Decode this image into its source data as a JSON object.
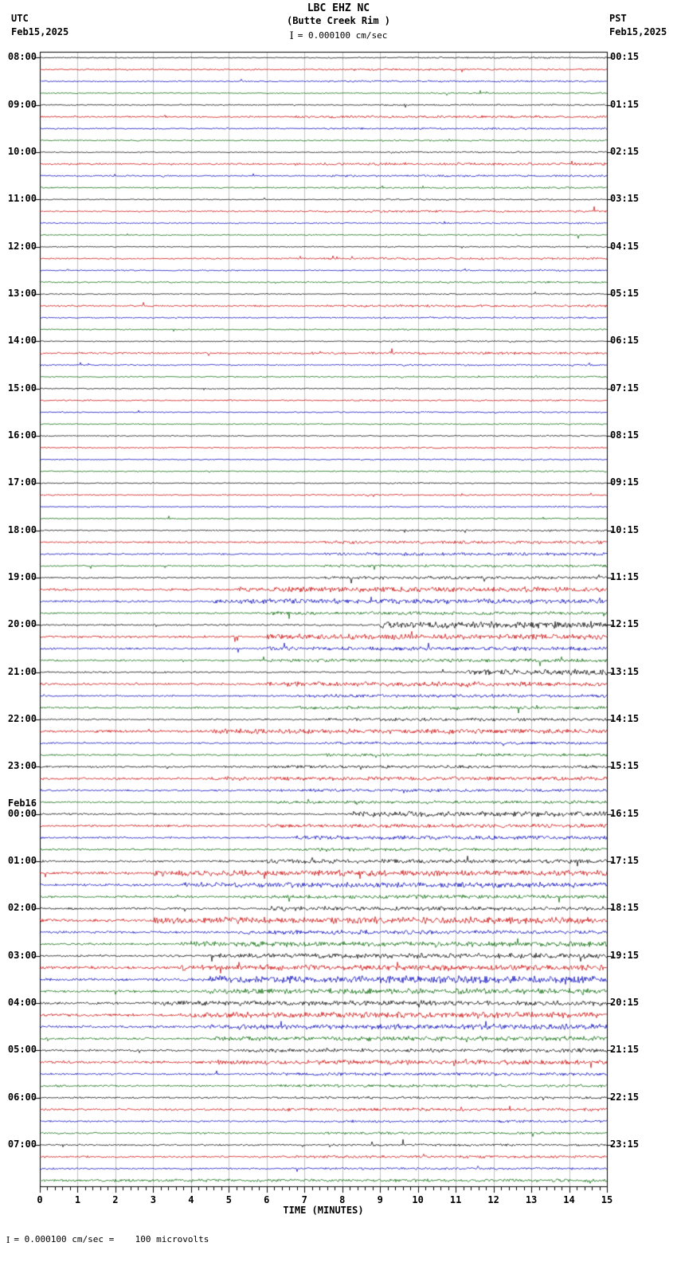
{
  "header": {
    "title": "LBC EHZ NC",
    "subtitle": "(Butte Creek Rim )",
    "scale_glyph": "I",
    "scale_label": "= 0.000100 cm/sec",
    "utc_tz": "UTC",
    "utc_date": "Feb15,2025",
    "pst_tz": "PST",
    "pst_date": "Feb15,2025"
  },
  "footer": {
    "axis_label": "TIME (MINUTES)",
    "scale_glyph": "I",
    "note": "= 0.000100 cm/sec =    100 microvolts"
  },
  "chart_data": {
    "type": "line",
    "title": "LBC EHZ NC (Butte Creek Rim ) helicorder",
    "xlabel": "TIME (MINUTES)",
    "x_range": [
      0,
      15
    ],
    "x_ticks": [
      0,
      1,
      2,
      3,
      4,
      5,
      6,
      7,
      8,
      9,
      10,
      11,
      12,
      13,
      14,
      15
    ],
    "rows_per_hour": 4,
    "minutes_per_row": 15,
    "grid": true,
    "trace_colors": [
      "#000000",
      "#cc0000",
      "#0000bb",
      "#006600"
    ],
    "utc_labels": [
      "08:00",
      "09:00",
      "10:00",
      "11:00",
      "12:00",
      "13:00",
      "14:00",
      "15:00",
      "16:00",
      "17:00",
      "18:00",
      "19:00",
      "20:00",
      "21:00",
      "22:00",
      "23:00",
      "Feb16\n00:00",
      "01:00",
      "02:00",
      "03:00",
      "04:00",
      "05:00",
      "06:00",
      "07:00"
    ],
    "pst_labels": [
      "00:15",
      "01:15",
      "02:15",
      "03:15",
      "04:15",
      "05:15",
      "06:15",
      "07:15",
      "08:15",
      "09:15",
      "10:15",
      "11:15",
      "12:15",
      "13:15",
      "14:15",
      "15:15",
      "16:15",
      "17:15",
      "18:15",
      "19:15",
      "20:15",
      "21:15",
      "22:15",
      "23:15"
    ],
    "traces": [
      [
        0.6,
        0.8,
        0.6
      ],
      [
        0.8,
        1.0,
        0.55
      ],
      [
        0.7,
        1.0,
        0.5
      ],
      [
        0.6,
        0.8,
        0.6
      ],
      [
        0.7,
        0.9,
        0.6
      ],
      [
        0.9,
        1.3,
        0.45
      ],
      [
        0.7,
        1.0,
        0.5
      ],
      [
        0.7,
        0.9,
        0.6
      ],
      [
        0.6,
        0.9,
        0.6
      ],
      [
        0.9,
        1.4,
        0.45
      ],
      [
        0.8,
        1.1,
        0.5
      ],
      [
        0.7,
        1.0,
        0.5
      ],
      [
        0.6,
        0.8,
        0.6
      ],
      [
        0.8,
        1.2,
        0.5
      ],
      [
        0.7,
        0.9,
        0.6
      ],
      [
        0.7,
        0.9,
        0.6
      ],
      [
        0.6,
        0.8,
        0.6
      ],
      [
        0.8,
        1.1,
        0.5
      ],
      [
        0.7,
        0.9,
        0.6
      ],
      [
        0.8,
        1.0,
        0.5
      ],
      [
        0.6,
        0.8,
        0.6
      ],
      [
        0.9,
        1.2,
        0.5
      ],
      [
        0.7,
        0.9,
        0.6
      ],
      [
        0.7,
        0.9,
        0.6
      ],
      [
        0.6,
        0.8,
        0.6
      ],
      [
        1.0,
        1.3,
        0.4
      ],
      [
        0.7,
        0.9,
        0.6
      ],
      [
        0.7,
        0.9,
        0.6
      ],
      [
        0.6,
        0.7,
        0.6
      ],
      [
        0.7,
        0.9,
        0.55
      ],
      [
        0.6,
        0.8,
        0.6
      ],
      [
        0.6,
        0.8,
        0.6
      ],
      [
        0.6,
        0.7,
        0.6
      ],
      [
        0.7,
        0.9,
        0.55
      ],
      [
        0.6,
        0.8,
        0.6
      ],
      [
        0.6,
        0.8,
        0.6
      ],
      [
        0.6,
        0.7,
        0.6
      ],
      [
        0.7,
        0.9,
        0.55
      ],
      [
        0.6,
        0.8,
        0.6
      ],
      [
        0.6,
        0.8,
        0.6
      ],
      [
        0.7,
        1.0,
        0.55
      ],
      [
        0.9,
        1.6,
        0.5
      ],
      [
        0.8,
        1.6,
        0.5
      ],
      [
        0.8,
        1.4,
        0.5
      ],
      [
        0.8,
        1.6,
        0.5
      ],
      [
        1.2,
        2.6,
        0.35
      ],
      [
        1.0,
        2.6,
        0.3
      ],
      [
        0.9,
        1.8,
        0.4
      ],
      [
        0.9,
        3.5,
        0.6
      ],
      [
        1.2,
        2.8,
        0.4
      ],
      [
        1.0,
        2.0,
        0.4
      ],
      [
        0.9,
        1.8,
        0.4
      ],
      [
        0.9,
        3.0,
        0.75
      ],
      [
        1.2,
        2.4,
        0.4
      ],
      [
        0.9,
        1.6,
        0.45
      ],
      [
        0.9,
        1.6,
        0.45
      ],
      [
        0.9,
        1.6,
        0.5
      ],
      [
        1.3,
        2.6,
        0.3
      ],
      [
        0.9,
        1.5,
        0.5
      ],
      [
        0.9,
        1.5,
        0.5
      ],
      [
        1.0,
        1.6,
        0.4
      ],
      [
        1.3,
        2.0,
        0.3
      ],
      [
        1.0,
        1.6,
        0.4
      ],
      [
        1.0,
        1.6,
        0.4
      ],
      [
        1.0,
        2.8,
        0.55
      ],
      [
        1.2,
        2.0,
        0.4
      ],
      [
        1.0,
        2.0,
        0.45
      ],
      [
        1.0,
        1.6,
        0.45
      ],
      [
        1.1,
        2.2,
        0.4
      ],
      [
        1.5,
        3.0,
        0.2
      ],
      [
        1.3,
        2.8,
        0.25
      ],
      [
        1.1,
        2.0,
        0.35
      ],
      [
        1.1,
        2.2,
        0.4
      ],
      [
        1.5,
        3.4,
        0.2
      ],
      [
        1.2,
        2.2,
        0.35
      ],
      [
        1.2,
        2.6,
        0.25
      ],
      [
        1.2,
        2.6,
        0.3
      ],
      [
        1.5,
        3.0,
        0.25
      ],
      [
        1.4,
        3.8,
        0.3
      ],
      [
        1.3,
        2.8,
        0.3
      ],
      [
        1.3,
        2.6,
        0.2
      ],
      [
        1.5,
        3.0,
        0.25
      ],
      [
        1.3,
        2.8,
        0.3
      ],
      [
        1.2,
        2.4,
        0.3
      ],
      [
        1.1,
        2.0,
        0.35
      ],
      [
        1.3,
        2.4,
        0.3
      ],
      [
        1.0,
        1.6,
        0.4
      ],
      [
        1.0,
        1.5,
        0.4
      ],
      [
        0.9,
        1.3,
        0.45
      ],
      [
        1.1,
        1.6,
        0.4
      ],
      [
        0.9,
        1.3,
        0.5
      ],
      [
        0.9,
        1.3,
        0.5
      ],
      [
        0.9,
        1.2,
        0.5
      ],
      [
        1.0,
        1.4,
        0.45
      ],
      [
        0.9,
        1.2,
        0.5
      ],
      [
        1.2,
        1.5,
        0.1
      ]
    ]
  }
}
